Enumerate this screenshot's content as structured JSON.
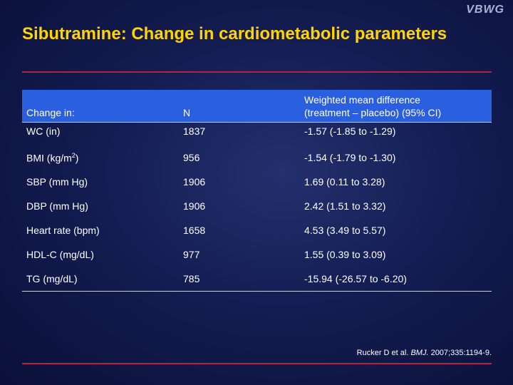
{
  "logo": "VBWG",
  "title": "Sibutramine: Change in cardiometabolic parameters",
  "table": {
    "headers": {
      "change_in": "Change in:",
      "n": "N",
      "wmd_line1": "Weighted mean difference",
      "wmd_line2": "(treatment – placebo) (95% CI)"
    },
    "rows": [
      {
        "param": "WC (in)",
        "n": "1837",
        "wmd": "-1.57 (-1.85 to -1.29)"
      },
      {
        "param_pre": "BMI (kg/m",
        "param_sup": "2",
        "param_post": ")",
        "n": "956",
        "wmd": "-1.54 (-1.79 to -1.30)"
      },
      {
        "param": "SBP (mm Hg)",
        "n": "1906",
        "wmd": "1.69 (0.11 to 3.28)"
      },
      {
        "param": "DBP (mm Hg)",
        "n": "1906",
        "wmd": "2.42 (1.51 to 3.32)"
      },
      {
        "param": "Heart rate (bpm)",
        "n": "1658",
        "wmd": "4.53 (3.49 to 5.57)"
      },
      {
        "param": "HDL-C (mg/dL)",
        "n": "977",
        "wmd": "1.55 (0.39 to 3.09)"
      },
      {
        "param": "TG (mg/dL)",
        "n": "785",
        "wmd": "-15.94 (-26.57 to -6.20)"
      }
    ]
  },
  "citation": {
    "authors": "Rucker D et al. ",
    "journal": "BMJ.",
    "details": " 2007;335:1194-9."
  },
  "colors": {
    "title": "#ffd400",
    "rule": "#b5223a",
    "header_bg": "#2a5fe0",
    "background": "#141d52"
  }
}
